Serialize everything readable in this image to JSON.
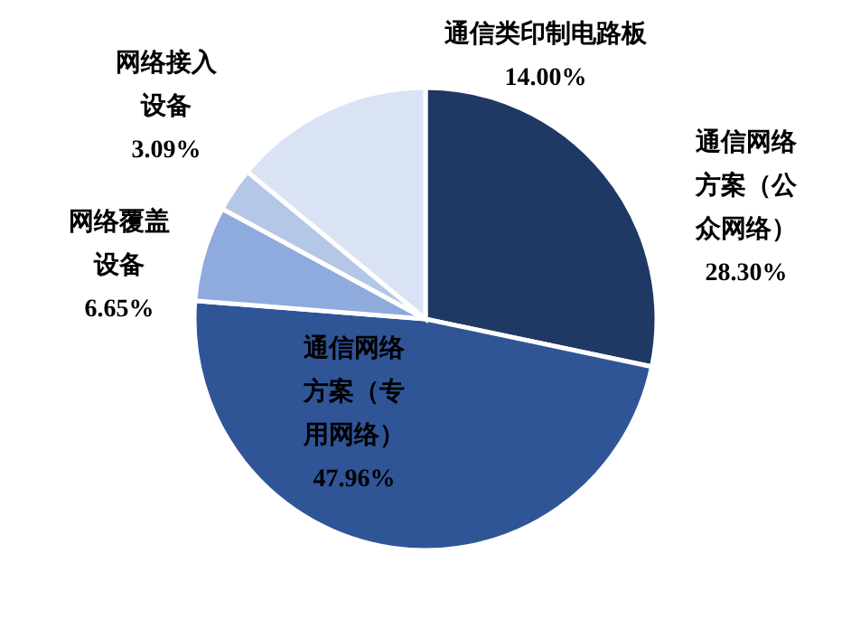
{
  "chart_data": {
    "type": "pie",
    "categories": [
      "通信网络方案（公众网络）",
      "通信网络方案（专用网络）",
      "网络覆盖设备",
      "网络接入设备",
      "通信类印制电路板"
    ],
    "values": [
      28.3,
      47.96,
      6.65,
      3.09,
      14.0
    ],
    "colors": [
      "#1f3864",
      "#2f5597",
      "#8faadc",
      "#b4c7e7",
      "#dae3f3"
    ],
    "value_labels": [
      "28.30%",
      "47.96%",
      "6.65%",
      "3.09%",
      "14.00%"
    ]
  }
}
